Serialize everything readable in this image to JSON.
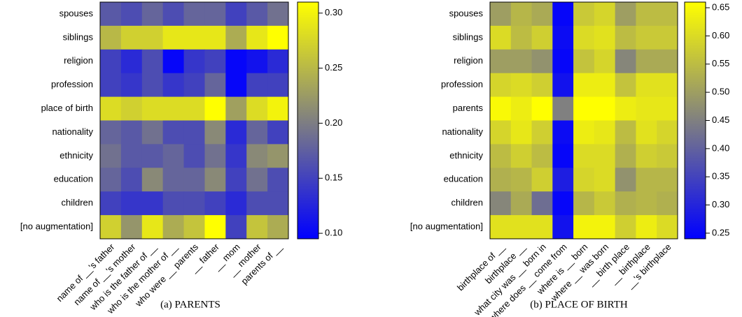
{
  "chart_data": [
    {
      "type": "heatmap",
      "caption": "(a) PARENTS",
      "rows": [
        "spouses",
        "siblings",
        "religion",
        "profession",
        "place of birth",
        "nationality",
        "ethnicity",
        "education",
        "children",
        "[no augmentation]"
      ],
      "columns": [
        "name of __'s father",
        "name of __'s mother",
        "who is the father of __",
        "who is the mother of __",
        "who were __ parents",
        "__ father",
        "__ mom",
        "__ mother",
        "parents of __"
      ],
      "values": [
        [
          0.17,
          0.16,
          0.18,
          0.16,
          0.18,
          0.18,
          0.15,
          0.17,
          0.19
        ],
        [
          0.25,
          0.27,
          0.27,
          0.29,
          0.29,
          0.29,
          0.24,
          0.29,
          0.31
        ],
        [
          0.15,
          0.13,
          0.16,
          0.1,
          0.14,
          0.15,
          0.1,
          0.11,
          0.13
        ],
        [
          0.15,
          0.14,
          0.16,
          0.14,
          0.15,
          0.18,
          0.1,
          0.15,
          0.15
        ],
        [
          0.28,
          0.27,
          0.28,
          0.28,
          0.28,
          0.31,
          0.23,
          0.28,
          0.3
        ],
        [
          0.18,
          0.17,
          0.19,
          0.16,
          0.16,
          0.21,
          0.13,
          0.18,
          0.15
        ],
        [
          0.19,
          0.17,
          0.17,
          0.18,
          0.16,
          0.19,
          0.14,
          0.21,
          0.22
        ],
        [
          0.18,
          0.16,
          0.21,
          0.18,
          0.18,
          0.21,
          0.15,
          0.19,
          0.16
        ],
        [
          0.15,
          0.14,
          0.14,
          0.16,
          0.16,
          0.15,
          0.13,
          0.16,
          0.16
        ],
        [
          0.27,
          0.22,
          0.29,
          0.24,
          0.26,
          0.31,
          0.15,
          0.26,
          0.24
        ]
      ],
      "clim": [
        0.095,
        0.31
      ],
      "cticks": [
        {
          "value": 0.1,
          "label": "0.10"
        },
        {
          "value": 0.15,
          "label": "0.15"
        },
        {
          "value": 0.2,
          "label": "0.20"
        },
        {
          "value": 0.25,
          "label": "0.25"
        },
        {
          "value": 0.3,
          "label": "0.30"
        }
      ],
      "colormap": [
        "#0000ff",
        "#808080",
        "#ffff00"
      ]
    },
    {
      "type": "heatmap",
      "caption": "(b) PLACE OF BIRTH",
      "rows": [
        "spouses",
        "siblings",
        "religion",
        "profession",
        "parents",
        "nationality",
        "ethnicity",
        "education",
        "children",
        "[no augmentation]"
      ],
      "columns": [
        "birthplace of __",
        "birthplace __",
        "what city was __ born in",
        "where does __ come from",
        "where is __ born",
        "where __ was born",
        "__ birth place",
        "__ birthplace",
        "__'s birthplace"
      ],
      "values": [
        [
          0.5,
          0.54,
          0.52,
          0.25,
          0.57,
          0.59,
          0.5,
          0.55,
          0.55
        ],
        [
          0.6,
          0.55,
          0.58,
          0.26,
          0.6,
          0.61,
          0.55,
          0.57,
          0.57
        ],
        [
          0.5,
          0.5,
          0.48,
          0.25,
          0.56,
          0.59,
          0.46,
          0.52,
          0.52
        ],
        [
          0.59,
          0.6,
          0.58,
          0.27,
          0.63,
          0.63,
          0.56,
          0.61,
          0.61
        ],
        [
          0.65,
          0.63,
          0.66,
          0.45,
          0.66,
          0.66,
          0.63,
          0.62,
          0.62
        ],
        [
          0.59,
          0.62,
          0.58,
          0.26,
          0.63,
          0.62,
          0.55,
          0.61,
          0.59
        ],
        [
          0.55,
          0.58,
          0.55,
          0.25,
          0.6,
          0.6,
          0.53,
          0.58,
          0.57
        ],
        [
          0.53,
          0.54,
          0.58,
          0.29,
          0.59,
          0.6,
          0.48,
          0.54,
          0.54
        ],
        [
          0.46,
          0.52,
          0.42,
          0.25,
          0.54,
          0.57,
          0.53,
          0.54,
          0.53
        ],
        [
          0.61,
          0.61,
          0.61,
          0.27,
          0.64,
          0.64,
          0.58,
          0.63,
          0.6
        ]
      ],
      "clim": [
        0.24,
        0.66
      ],
      "cticks": [
        {
          "value": 0.25,
          "label": "0.25"
        },
        {
          "value": 0.3,
          "label": "0.30"
        },
        {
          "value": 0.35,
          "label": "0.35"
        },
        {
          "value": 0.4,
          "label": "0.40"
        },
        {
          "value": 0.45,
          "label": "0.45"
        },
        {
          "value": 0.5,
          "label": "0.50"
        },
        {
          "value": 0.55,
          "label": "0.55"
        },
        {
          "value": 0.6,
          "label": "0.60"
        },
        {
          "value": 0.65,
          "label": "0.65"
        }
      ],
      "colormap": [
        "#0000ff",
        "#808080",
        "#ffff00"
      ]
    }
  ]
}
